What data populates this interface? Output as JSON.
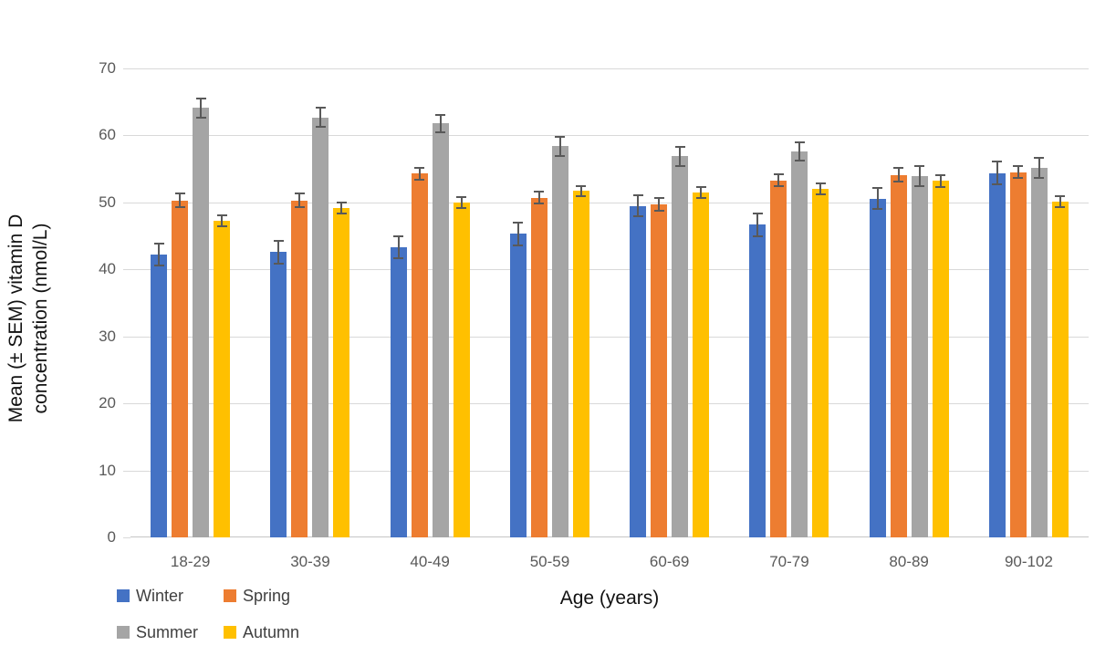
{
  "chart_data": {
    "type": "bar",
    "title": "",
    "categories": [
      "18-29",
      "30-39",
      "40-49",
      "50-59",
      "60-69",
      "70-79",
      "80-89",
      "90-102"
    ],
    "series": [
      {
        "name": "Winter",
        "color": "#4472C4",
        "values": [
          42.2,
          42.6,
          43.3,
          45.3,
          49.5,
          46.7,
          50.6,
          54.4
        ],
        "sem": [
          1.6,
          1.7,
          1.6,
          1.7,
          1.6,
          1.7,
          1.5,
          1.7
        ]
      },
      {
        "name": "Spring",
        "color": "#ED7D31",
        "values": [
          50.3,
          50.3,
          54.3,
          50.7,
          49.7,
          53.3,
          54.1,
          54.5
        ],
        "sem": [
          1.0,
          1.0,
          0.9,
          0.9,
          1.0,
          0.9,
          1.0,
          0.9
        ]
      },
      {
        "name": "Summer",
        "color": "#A5A5A5",
        "values": [
          64.1,
          62.7,
          61.8,
          58.4,
          56.9,
          57.6,
          53.9,
          55.2
        ],
        "sem": [
          1.4,
          1.4,
          1.3,
          1.4,
          1.4,
          1.4,
          1.5,
          1.5
        ]
      },
      {
        "name": "Autumn",
        "color": "#FFC000",
        "values": [
          47.3,
          49.2,
          50.0,
          51.7,
          51.5,
          52.0,
          53.2,
          50.1
        ],
        "sem": [
          0.8,
          0.8,
          0.8,
          0.7,
          0.8,
          0.8,
          0.9,
          0.8
        ]
      }
    ],
    "error_bars": true,
    "xlabel": "Age (years)",
    "ylabel": "Mean (± SEM) vitamin D concentration (nmol/L)",
    "ylabel_lines": [
      "Mean (± SEM) vitamin D",
      "concentration (nmol/L)"
    ],
    "ylim": [
      0,
      70
    ],
    "y_ticks": [
      0,
      10,
      20,
      30,
      40,
      50,
      60,
      70
    ],
    "grid": true,
    "legend_position": "bottom-left",
    "legend_rows": [
      [
        "Winter",
        "Spring"
      ],
      [
        "Summer",
        "Autumn"
      ]
    ],
    "colors": {
      "gridline": "#D9D9D9",
      "axis_line": "#C6C6C6",
      "error_bar": "#595959",
      "tick_label": "#595959",
      "axis_title": "#111111",
      "legend_text": "#404040",
      "background": "#FFFFFF"
    }
  }
}
